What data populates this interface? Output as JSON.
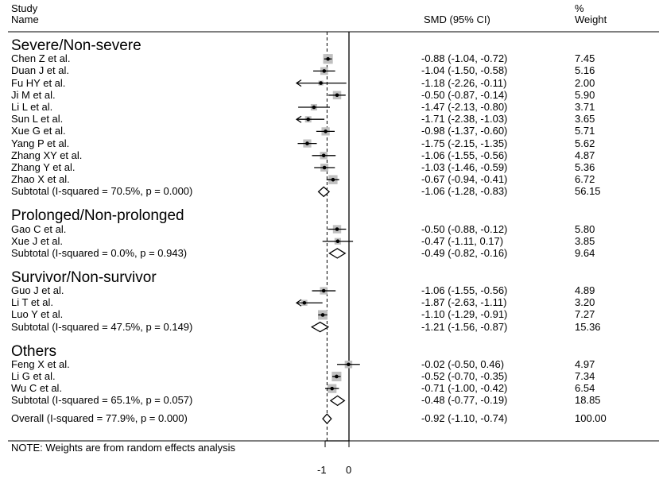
{
  "header": {
    "study_line1": "Study",
    "study_line2": "Name",
    "smd": "SMD (95% CI)",
    "weight_line1": "%",
    "weight_line2": "Weight"
  },
  "note": "NOTE: Weights are from random effects analysis",
  "chart_data": {
    "type": "forest",
    "xlabel": "",
    "x_ticks": [
      "-1",
      "0"
    ],
    "dashed_reference": -0.92,
    "groups": [
      {
        "name": "Severe/Non-severe",
        "studies": [
          {
            "label": "Chen Z et al.",
            "smd": -0.88,
            "lo": -1.04,
            "hi": -0.72,
            "ci": "-0.88 (-1.04, -0.72)",
            "weight": "7.45"
          },
          {
            "label": "Duan J et al.",
            "smd": -1.04,
            "lo": -1.5,
            "hi": -0.58,
            "ci": "-1.04 (-1.50, -0.58)",
            "weight": "5.16"
          },
          {
            "label": "Fu HY et al.",
            "smd": -1.18,
            "lo": -2.26,
            "hi": -0.11,
            "ci": "-1.18 (-2.26, -0.11)",
            "weight": "2.00"
          },
          {
            "label": "Ji M et al.",
            "smd": -0.5,
            "lo": -0.87,
            "hi": -0.14,
            "ci": "-0.50 (-0.87, -0.14)",
            "weight": "5.90"
          },
          {
            "label": "Li L et al.",
            "smd": -1.47,
            "lo": -2.13,
            "hi": -0.8,
            "ci": "-1.47 (-2.13, -0.80)",
            "weight": "3.71"
          },
          {
            "label": "Sun L et al.",
            "smd": -1.71,
            "lo": -2.38,
            "hi": -1.03,
            "ci": "-1.71 (-2.38, -1.03)",
            "weight": "3.65"
          },
          {
            "label": "Xue G et al.",
            "smd": -0.98,
            "lo": -1.37,
            "hi": -0.6,
            "ci": "-0.98 (-1.37, -0.60)",
            "weight": "5.71"
          },
          {
            "label": "Yang P et al.",
            "smd": -1.75,
            "lo": -2.15,
            "hi": -1.35,
            "ci": "-1.75 (-2.15, -1.35)",
            "weight": "5.62"
          },
          {
            "label": "Zhang XY et al.",
            "smd": -1.06,
            "lo": -1.55,
            "hi": -0.56,
            "ci": "-1.06 (-1.55, -0.56)",
            "weight": "4.87"
          },
          {
            "label": "Zhang Y et al.",
            "smd": -1.03,
            "lo": -1.46,
            "hi": -0.59,
            "ci": "-1.03 (-1.46, -0.59)",
            "weight": "5.36"
          },
          {
            "label": "Zhao X et al.",
            "smd": -0.67,
            "lo": -0.94,
            "hi": -0.41,
            "ci": "-0.67 (-0.94, -0.41)",
            "weight": "6.72"
          }
        ],
        "subtotal": {
          "label": "Subtotal  (I-squared = 70.5%, p = 0.000)",
          "smd": -1.06,
          "lo": -1.28,
          "hi": -0.83,
          "ci": "-1.06 (-1.28, -0.83)",
          "weight": "56.15"
        }
      },
      {
        "name": "Prolonged/Non-prolonged",
        "studies": [
          {
            "label": "Gao C et al.",
            "smd": -0.5,
            "lo": -0.88,
            "hi": -0.12,
            "ci": "-0.50 (-0.88, -0.12)",
            "weight": "5.80"
          },
          {
            "label": "Xue J et al.",
            "smd": -0.47,
            "lo": -1.11,
            "hi": 0.17,
            "ci": "-0.47 (-1.11, 0.17)",
            "weight": "3.85"
          }
        ],
        "subtotal": {
          "label": "Subtotal  (I-squared = 0.0%, p = 0.943)",
          "smd": -0.49,
          "lo": -0.82,
          "hi": -0.16,
          "ci": "-0.49 (-0.82, -0.16)",
          "weight": "9.64"
        }
      },
      {
        "name": "Survivor/Non-survivor",
        "studies": [
          {
            "label": "Guo J et al.",
            "smd": -1.06,
            "lo": -1.55,
            "hi": -0.56,
            "ci": "-1.06 (-1.55, -0.56)",
            "weight": "4.89"
          },
          {
            "label": "Li T et al.",
            "smd": -1.87,
            "lo": -2.63,
            "hi": -1.11,
            "ci": "-1.87 (-2.63, -1.11)",
            "weight": "3.20"
          },
          {
            "label": "Luo Y et al.",
            "smd": -1.1,
            "lo": -1.29,
            "hi": -0.91,
            "ci": "-1.10 (-1.29, -0.91)",
            "weight": "7.27"
          }
        ],
        "subtotal": {
          "label": "Subtotal  (I-squared = 47.5%, p = 0.149)",
          "smd": -1.21,
          "lo": -1.56,
          "hi": -0.87,
          "ci": "-1.21 (-1.56, -0.87)",
          "weight": "15.36"
        }
      },
      {
        "name": "Others",
        "studies": [
          {
            "label": "Feng X et al.",
            "smd": -0.02,
            "lo": -0.5,
            "hi": 0.46,
            "ci": "-0.02 (-0.50, 0.46)",
            "weight": "4.97"
          },
          {
            "label": "Li G et al.",
            "smd": -0.52,
            "lo": -0.7,
            "hi": -0.35,
            "ci": "-0.52 (-0.70, -0.35)",
            "weight": "7.34"
          },
          {
            "label": "Wu C et al.",
            "smd": -0.71,
            "lo": -1.0,
            "hi": -0.42,
            "ci": "-0.71 (-1.00, -0.42)",
            "weight": "6.54"
          }
        ],
        "subtotal": {
          "label": "Subtotal  (I-squared = 65.1%, p = 0.057)",
          "smd": -0.48,
          "lo": -0.77,
          "hi": -0.19,
          "ci": "-0.48 (-0.77, -0.19)",
          "weight": "18.85"
        }
      }
    ],
    "overall": {
      "label": "Overall  (I-squared = 77.9%, p = 0.000)",
      "smd": -0.92,
      "lo": -1.1,
      "hi": -0.74,
      "ci": "-0.92 (-1.10, -0.74)",
      "weight": "100.00"
    }
  }
}
